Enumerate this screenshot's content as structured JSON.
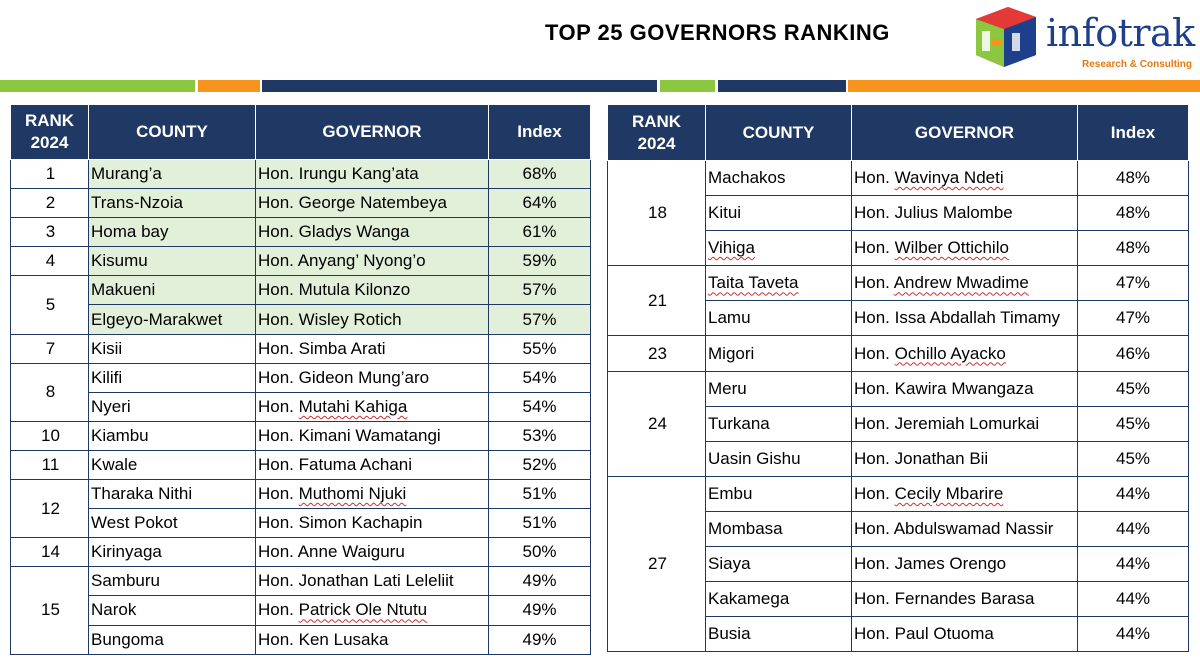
{
  "title": "TOP 25 GOVERNORS RANKING",
  "logo": {
    "name": "infotrak",
    "tagline": "Research & Consulting"
  },
  "colors": {
    "header_bg": "#1f3864",
    "highlight": "#e2efd9",
    "green": "#8dc63f",
    "orange": "#f7941d",
    "navy": "#1f3864"
  },
  "headers": {
    "rank_line1": "RANK",
    "rank_line2": "2024",
    "county": "COUNTY",
    "governor": "GOVERNOR",
    "index": "Index"
  },
  "left_rows": [
    {
      "rank": "1",
      "county": "Murang’a",
      "gov_prefix": "Hon. ",
      "gov_name": "Irungu Kang’ata",
      "index": "68%"
    },
    {
      "rank": "2",
      "county": "Trans-Nzoia",
      "gov_prefix": "Hon. ",
      "gov_name": "George Natembeya",
      "index": "64%"
    },
    {
      "rank": "3",
      "county": "Homa bay",
      "gov_prefix": "Hon. ",
      "gov_name": "Gladys Wanga",
      "index": "61%"
    },
    {
      "rank": "4",
      "county": "Kisumu",
      "gov_prefix": "Hon. ",
      "gov_name": "Anyang’ Nyong’o",
      "index": "59%"
    },
    {
      "rank": "5",
      "county": "Makueni",
      "gov_prefix": "Hon. ",
      "gov_name": "Mutula Kilonzo",
      "index": "57%"
    },
    {
      "rank": "",
      "county": "Elgeyo-Marakwet",
      "gov_prefix": "Hon. ",
      "gov_name": "Wisley Rotich",
      "index": "57%"
    },
    {
      "rank": "7",
      "county": "Kisii",
      "gov_prefix": "Hon. ",
      "gov_name": "Simba Arati",
      "index": "55%"
    },
    {
      "rank": "8",
      "county": "Kilifi",
      "gov_prefix": "Hon. ",
      "gov_name": "Gideon Mung’aro",
      "index": "54%"
    },
    {
      "rank": "",
      "county": "Nyeri",
      "gov_prefix": "Hon. ",
      "gov_name": "Mutahi Kahiga",
      "index": "54%"
    },
    {
      "rank": "10",
      "county": "Kiambu",
      "gov_prefix": "Hon. ",
      "gov_name": "Kimani Wamatangi",
      "index": "53%"
    },
    {
      "rank": "11",
      "county": "Kwale",
      "gov_prefix": "Hon. ",
      "gov_name": "Fatuma Achani",
      "index": "52%"
    },
    {
      "rank": "12",
      "county": "Tharaka Nithi",
      "gov_prefix": "Hon. ",
      "gov_name": "Muthomi Njuki",
      "index": "51%"
    },
    {
      "rank": "",
      "county": "West Pokot",
      "gov_prefix": "Hon. ",
      "gov_name": "Simon Kachapin",
      "index": "51%"
    },
    {
      "rank": "14",
      "county": "Kirinyaga",
      "gov_prefix": "Hon. ",
      "gov_name": "Anne Waiguru",
      "index": "50%"
    },
    {
      "rank": "15",
      "county": "Samburu",
      "gov_prefix": "Hon. ",
      "gov_name": "Jonathan Lati Leleliit",
      "index": "49%"
    },
    {
      "rank": "",
      "county": "Narok",
      "gov_prefix": "Hon. ",
      "gov_name": "Patrick Ole Ntutu",
      "index": "49%"
    },
    {
      "rank": "",
      "county": "Bungoma",
      "gov_prefix": "Hon. ",
      "gov_name": "Ken Lusaka",
      "index": "49%"
    }
  ],
  "right_rows": [
    {
      "rank": "18",
      "county": "Machakos",
      "gov_prefix": "Hon. ",
      "gov_name": "Wavinya Ndeti",
      "index": "48%"
    },
    {
      "rank": "",
      "county": "Kitui",
      "gov_prefix": "Hon. ",
      "gov_name": "Julius Malombe",
      "index": "48%"
    },
    {
      "rank": "",
      "county": "Vihiga",
      "gov_prefix": "Hon. ",
      "gov_name": "Wilber Ottichilo",
      "index": "48%"
    },
    {
      "rank": "21",
      "county": "Taita Taveta",
      "gov_prefix": "Hon. ",
      "gov_name": "Andrew Mwadime",
      "index": "47%"
    },
    {
      "rank": "",
      "county": "Lamu",
      "gov_prefix": "Hon. ",
      "gov_name": "Issa Abdallah Timamy",
      "index": "47%"
    },
    {
      "rank": "23",
      "county": "Migori",
      "gov_prefix": "Hon. ",
      "gov_name": "Ochillo Ayacko",
      "index": "46%"
    },
    {
      "rank": "24",
      "county": "Meru",
      "gov_prefix": "Hon. ",
      "gov_name": "Kawira Mwangaza",
      "index": "45%"
    },
    {
      "rank": "",
      "county": "Turkana",
      "gov_prefix": "Hon. ",
      "gov_name": "Jeremiah Lomurkai",
      "index": "45%"
    },
    {
      "rank": "",
      "county": "Uasin Gishu",
      "gov_prefix": "Hon. ",
      "gov_name": "Jonathan Bii",
      "index": "45%"
    },
    {
      "rank": "27",
      "county": "Embu",
      "gov_prefix": "Hon. ",
      "gov_name": "Cecily Mbarire",
      "index": "44%"
    },
    {
      "rank": "",
      "county": "Mombasa",
      "gov_prefix": "Hon. ",
      "gov_name": "Abdulswamad Nassir",
      "index": "44%"
    },
    {
      "rank": "",
      "county": "Siaya",
      "gov_prefix": "Hon. ",
      "gov_name": "James Orengo",
      "index": "44%"
    },
    {
      "rank": "",
      "county": "Kakamega",
      "gov_prefix": "Hon. ",
      "gov_name": "Fernandes Barasa",
      "index": "44%"
    },
    {
      "rank": "",
      "county": "Busia",
      "gov_prefix": "Hon. ",
      "gov_name": "Paul Otuoma",
      "index": "44%"
    }
  ]
}
